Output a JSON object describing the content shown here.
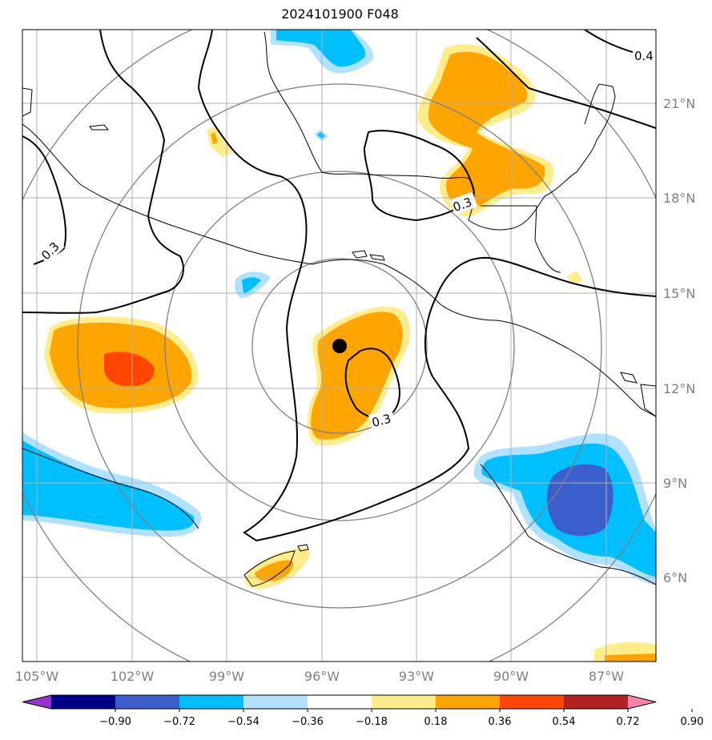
{
  "title": "2024101900 F048",
  "lat_labels": [
    "21°N",
    "18°N",
    "15°N",
    "12°N",
    "9°N",
    "6°N"
  ],
  "lon_labels": [
    "105°W",
    "102°W",
    "99°W",
    "96°W",
    "93°W",
    "90°W",
    "87°W"
  ],
  "contour_labels": [
    "0.3",
    "0.3",
    "0.3",
    "0.4"
  ],
  "colorbar": {
    "ticks": [
      "−0.90",
      "−0.72",
      "−0.54",
      "−0.36",
      "−0.18",
      "0.18",
      "0.36",
      "0.54",
      "0.72",
      "0.90"
    ],
    "colors": [
      "#9932cc",
      "#00008b",
      "#3a5fcd",
      "#00bfff",
      "#b0e2ff",
      "#ffffff",
      "#ffec8b",
      "#ffa500",
      "#ff4500",
      "#b22222",
      "#ff82ab"
    ]
  },
  "storm_center_marker": "black-dot"
}
